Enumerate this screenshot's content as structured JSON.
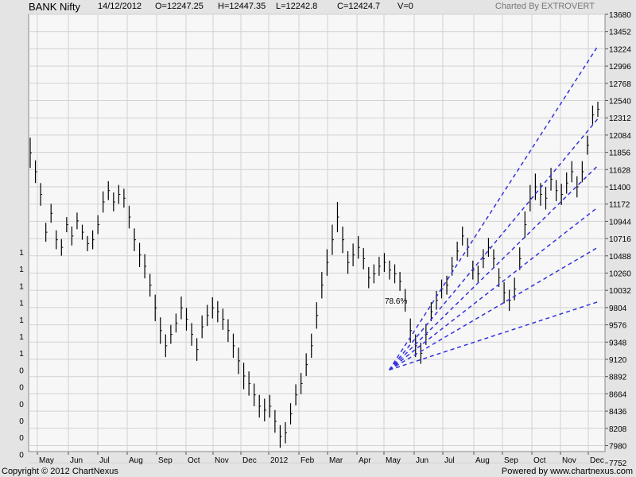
{
  "header": {
    "ticker": "BANK Nifty",
    "date": "14/12/2012",
    "open": "O=12247.25",
    "high": "H=12447.35",
    "low": "L=12242.8",
    "close": "C=12424.7",
    "volume": "V=0",
    "credit": "Charted By EXTROVERT"
  },
  "footer": {
    "copyright": "Copyright © 2012 ChartNexus",
    "powered": "Powered by www.chartnexus.com"
  },
  "colors": {
    "plot_bg": "#f7f7f7",
    "frame_bg": "#e4e4e4",
    "grid": "#d2d2d2",
    "price_bars": "#000000",
    "fan_lines": "#3333dd"
  },
  "chart_data": {
    "type": "ohlc",
    "title": "BANK Nifty",
    "xlabel": "",
    "ylabel": "",
    "ylim": [
      7524,
      13680
    ],
    "y_ticks": [
      13680,
      13452,
      13224,
      12996,
      12768,
      12540,
      12312,
      12084,
      11856,
      11628,
      11400,
      11172,
      10944,
      10716,
      10488,
      10260,
      10032,
      9804,
      9576,
      9348,
      9120,
      8892,
      8664,
      8436,
      8208,
      7980,
      7752
    ],
    "x_labels": [
      "May",
      "Jun",
      "Jul",
      "Aug",
      "Sep",
      "Oct",
      "Nov",
      "Dec",
      "2012",
      "Feb",
      "Mar",
      "Apr",
      "May",
      "Jun",
      "Jul",
      "Aug",
      "Sep",
      "Oct",
      "Nov",
      "Dec"
    ],
    "left_axis_labels": [
      "1",
      "1",
      "1",
      "1",
      "1",
      "1",
      "1",
      "0",
      "0",
      "0",
      "0",
      "0",
      "0"
    ],
    "grid": true,
    "series": [
      {
        "values": [
          11850,
          11600,
          11300,
          10800,
          11050,
          10700,
          10600,
          10900,
          10750,
          10950,
          10800,
          10650,
          10700,
          10900,
          11200,
          11350,
          11200,
          11300,
          11250,
          11000,
          10700,
          10500,
          10350,
          10100,
          9800,
          9500,
          9300,
          9450,
          9600,
          9800,
          9650,
          9450,
          9250,
          9550,
          9700,
          9800,
          9750,
          9650,
          9500,
          9300,
          9100,
          8900,
          8800,
          8650,
          8500,
          8450,
          8500,
          8300,
          8100,
          8150,
          8400,
          8650,
          8800,
          9050,
          9300,
          9700,
          10100,
          10400,
          10700,
          11000,
          10700,
          10400,
          10500,
          10600,
          10450,
          10200,
          10250,
          10350,
          10400,
          10300,
          10250,
          10150,
          9900,
          9500,
          9300,
          9200,
          9450,
          9750,
          9900,
          10050,
          10100,
          10350,
          10550,
          10750,
          10600,
          10300,
          10250,
          10450,
          10600,
          10450,
          10200,
          10000,
          9900,
          10050,
          10450,
          10900,
          11250,
          11400,
          11300,
          11250,
          11500,
          11350,
          11300,
          11450,
          11600,
          11400,
          11600,
          11950,
          12350,
          12424.7
        ]
      }
    ],
    "bands": [
      400,
      300,
      300,
      250,
      250,
      250,
      220,
      200,
      250,
      220,
      200,
      200,
      250,
      250,
      280,
      250,
      250,
      250,
      250,
      300,
      300,
      320,
      320,
      300,
      350,
      350,
      300,
      250,
      250,
      300,
      300,
      300,
      300,
      300,
      280,
      280,
      280,
      280,
      300,
      320,
      350,
      350,
      320,
      300,
      300,
      300,
      300,
      300,
      300,
      280,
      280,
      280,
      280,
      300,
      320,
      350,
      350,
      350,
      400,
      400,
      350,
      300,
      300,
      300,
      280,
      280,
      250,
      250,
      250,
      250,
      250,
      250,
      300,
      320,
      300,
      280,
      280,
      250,
      250,
      250,
      250,
      250,
      250,
      250,
      250,
      250,
      220,
      250,
      250,
      250,
      250,
      280,
      280,
      300,
      300,
      350,
      350,
      350,
      300,
      300,
      300,
      280,
      280,
      280,
      280,
      280,
      280,
      250,
      250,
      200
    ],
    "fan": {
      "label": "78.6%",
      "origin": {
        "t": 0.6325,
        "v": 8980
      },
      "targets": [
        {
          "t": 1.0,
          "v": 13260
        },
        {
          "t": 1.0,
          "v": 12300
        },
        {
          "t": 1.0,
          "v": 11680
        },
        {
          "t": 1.0,
          "v": 11130
        },
        {
          "t": 1.0,
          "v": 10600
        },
        {
          "t": 1.0,
          "v": 9880
        }
      ]
    }
  }
}
